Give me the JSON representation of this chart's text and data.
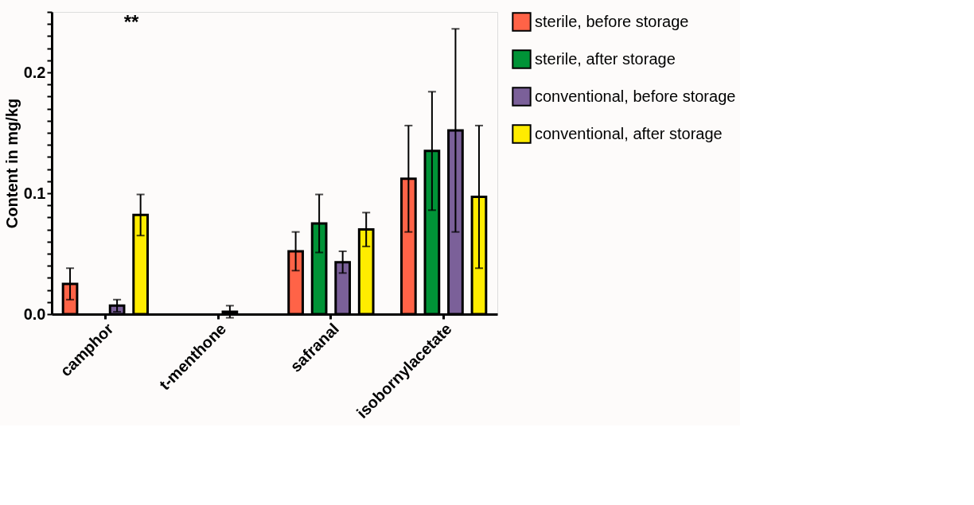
{
  "chart_data": {
    "type": "bar",
    "ylabel": "Content in mg/kg",
    "categories": [
      "camphor",
      "t-menthone",
      "safranal",
      "isobornylacetate"
    ],
    "series": [
      {
        "name": "sterile, before storage",
        "color": "#ff6347",
        "values": [
          0.025,
          null,
          0.052,
          0.112
        ],
        "errors": [
          0.013,
          null,
          0.016,
          0.044
        ]
      },
      {
        "name": "sterile, after storage",
        "color": "#009337",
        "values": [
          null,
          null,
          0.075,
          0.135
        ],
        "errors": [
          null,
          null,
          0.024,
          0.049
        ]
      },
      {
        "name": "conventional, before storage",
        "color": "#7b6099",
        "values": [
          0.007,
          0.002,
          0.043,
          0.152
        ],
        "errors": [
          0.005,
          0.005,
          0.009,
          0.084
        ]
      },
      {
        "name": "conventional, after storage",
        "color": "#ffec00",
        "values": [
          0.082,
          null,
          0.07,
          0.097
        ],
        "errors": [
          0.017,
          null,
          0.014,
          0.059
        ]
      }
    ],
    "ylim": [
      0,
      0.25
    ],
    "yticks": [
      {
        "value": 0,
        "label": "0.0"
      },
      {
        "value": 0.01,
        "label": null
      },
      {
        "value": 0.02,
        "label": null
      },
      {
        "value": 0.03,
        "label": null
      },
      {
        "value": 0.04,
        "label": null
      },
      {
        "value": 0.05,
        "label": null
      },
      {
        "value": 0.06,
        "label": null
      },
      {
        "value": 0.07,
        "label": null
      },
      {
        "value": 0.08,
        "label": null
      },
      {
        "value": 0.09,
        "label": null
      },
      0.1,
      {
        "value": 0.11,
        "label": null
      },
      {
        "value": 0.12,
        "label": null
      },
      {
        "value": 0.13,
        "label": null
      },
      {
        "value": 0.14,
        "label": null
      },
      {
        "value": 0.15,
        "label": null
      },
      {
        "value": 0.16,
        "label": null
      },
      {
        "value": 0.17,
        "label": null
      },
      {
        "value": 0.18,
        "label": null
      },
      {
        "value": 0.19,
        "label": null
      },
      0.2,
      {
        "value": 0.21,
        "label": null
      },
      {
        "value": 0.22,
        "label": null
      },
      {
        "value": 0.23,
        "label": null
      },
      {
        "value": 0.24,
        "label": null
      },
      {
        "value": 0.25,
        "label": null
      }
    ],
    "annotations": [
      "**"
    ],
    "legend": "right",
    "grid": false
  }
}
